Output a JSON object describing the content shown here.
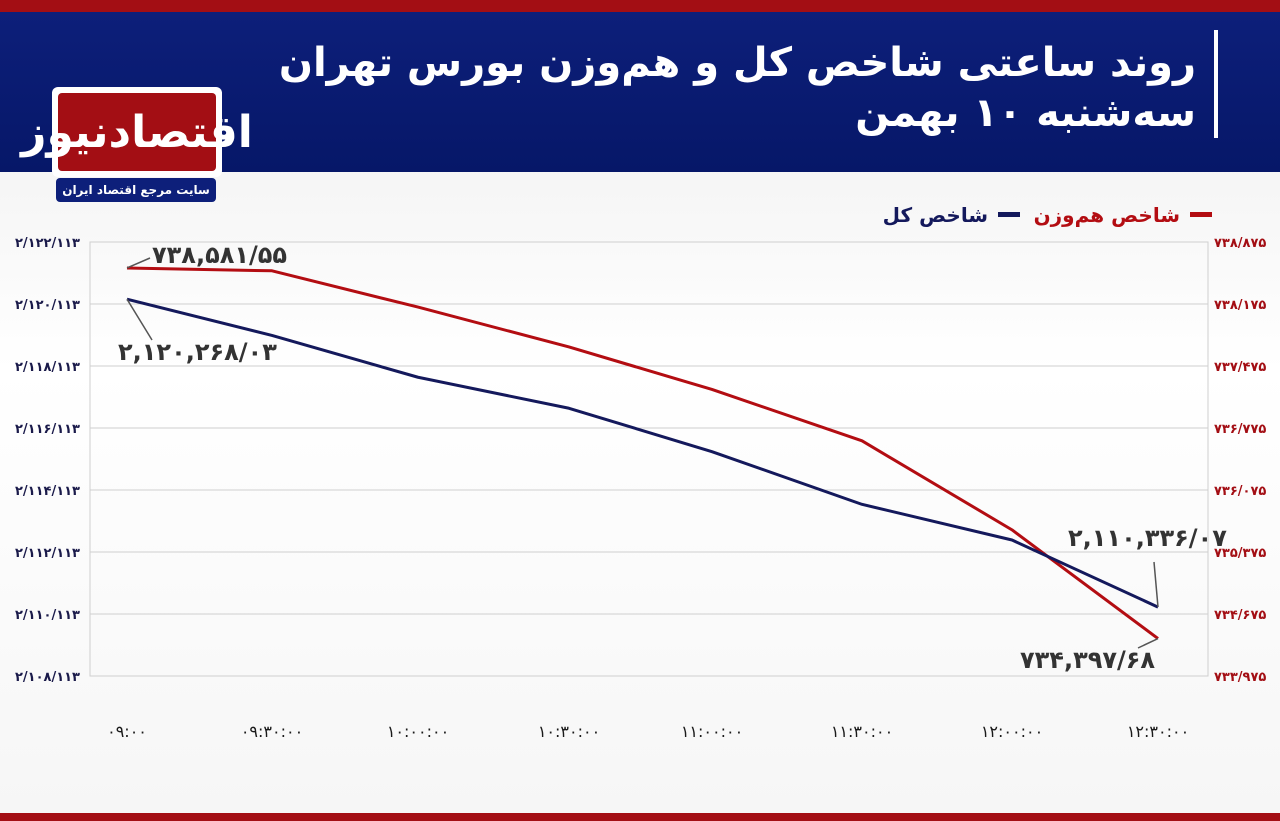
{
  "header": {
    "title_line1": "روند ساعتی شاخص کل و هم‌وزن بورس تهران",
    "title_line2": "سه‌شنبه ۱۰ بهمن"
  },
  "logo": {
    "name": "اقتصادنیوز",
    "tagline": "سایت مرجع اقتصاد ایران"
  },
  "colors": {
    "brand_blue": "#0d1f7a",
    "brand_red": "#a30e14",
    "series_total": "#14195c",
    "series_equal": "#b30d12"
  },
  "chart_data": {
    "type": "line",
    "x": [
      "۰۹:۰۰",
      "۰۹:۳۰:۰۰",
      "۱۰:۰۰:۰۰",
      "۱۰:۳۰:۰۰",
      "۱۱:۰۰:۰۰",
      "۱۱:۳۰:۰۰",
      "۱۲:۰۰:۰۰",
      "۱۲:۳۰:۰۰"
    ],
    "legend": [
      "شاخص هم‌وزن",
      "شاخص کل"
    ],
    "legend_position": "top-right",
    "grid": true,
    "left_axis": {
      "ylim": [
        2108113,
        2122113
      ],
      "ticks": [
        "۲/۱۰۸/۱۱۳",
        "۲/۱۱۰/۱۱۳",
        "۲/۱۱۲/۱۱۳",
        "۲/۱۱۴/۱۱۳",
        "۲/۱۱۶/۱۱۳",
        "۲/۱۱۸/۱۱۳",
        "۲/۱۲۰/۱۱۳",
        "۲/۱۲۲/۱۱۳"
      ]
    },
    "right_axis": {
      "ylim": [
        733975,
        738875
      ],
      "ticks": [
        "۷۳۳/۹۷۵",
        "۷۳۴/۶۷۵",
        "۷۳۵/۳۷۵",
        "۷۳۶/۰۷۵",
        "۷۳۶/۷۷۵",
        "۷۳۷/۴۷۵",
        "۷۳۸/۱۷۵",
        "۷۳۸/۸۷۵"
      ]
    },
    "series": [
      {
        "name": "شاخص کل",
        "axis": "left",
        "values": [
          2120268.03,
          2119100,
          2117750,
          2116750,
          2115350,
          2113650,
          2112500,
          2110336.07
        ]
      },
      {
        "name": "شاخص هم‌وزن",
        "axis": "right",
        "values": [
          738581.55,
          738550,
          738140,
          737690,
          737210,
          736630,
          735625,
          734397.68
        ]
      }
    ],
    "annotations": [
      {
        "text": "۷۳۸,۵۸۱/۵۵"
      },
      {
        "text": "۲,۱۲۰,۲۶۸/۰۳"
      },
      {
        "text": "۲,۱۱۰,۳۳۶/۰۷"
      },
      {
        "text": "۷۳۴,۳۹۷/۶۸"
      }
    ]
  }
}
